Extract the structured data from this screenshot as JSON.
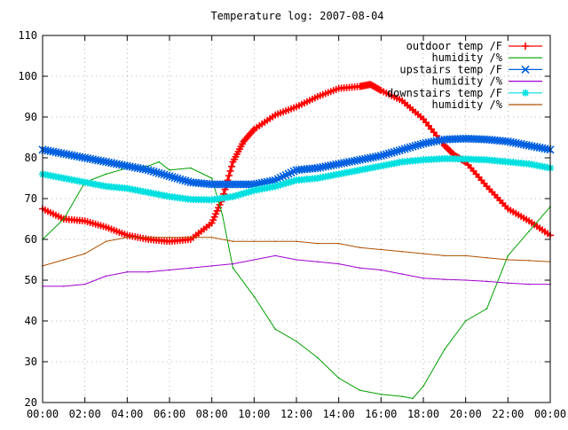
{
  "chart_data": {
    "type": "line",
    "title": "Temperature log: 2007-08-04",
    "xlabel": "",
    "ylabel": "",
    "xlim": [
      0,
      24
    ],
    "ylim": [
      20,
      110
    ],
    "grid": true,
    "legend_position": "top-right",
    "x_tick_labels": [
      "00:00",
      "02:00",
      "04:00",
      "06:00",
      "08:00",
      "10:00",
      "12:00",
      "14:00",
      "16:00",
      "18:00",
      "20:00",
      "22:00",
      "00:00"
    ],
    "y_ticks": [
      20,
      30,
      40,
      50,
      60,
      70,
      80,
      90,
      100,
      110
    ],
    "series": [
      {
        "name": "outdoor temp /F",
        "color": "#ff0000",
        "marker": "plus",
        "x": [
          0,
          1,
          2,
          3,
          4,
          5,
          6,
          7,
          8,
          8.5,
          9,
          9.5,
          10,
          11,
          12,
          13,
          14,
          15,
          15.5,
          16,
          17,
          18,
          19,
          19.5,
          20,
          21,
          22,
          23,
          24
        ],
        "y": [
          67.5,
          65,
          64.5,
          63,
          61,
          60,
          59.5,
          60,
          64,
          70,
          79,
          84,
          87,
          90.5,
          92.5,
          95,
          97,
          97.5,
          98,
          96.5,
          94,
          89.5,
          83,
          80.5,
          79,
          73,
          67.5,
          64.5,
          61
        ]
      },
      {
        "name": "humidity /%",
        "color": "#00a000",
        "marker": "none",
        "x": [
          0,
          1,
          2,
          3,
          4,
          5,
          5.5,
          6,
          7,
          8,
          8.5,
          9,
          10,
          11,
          12,
          13,
          14,
          15,
          16,
          17,
          17.5,
          18,
          19,
          20,
          21,
          22,
          23,
          24
        ],
        "y": [
          60,
          65,
          74,
          76,
          77.5,
          78,
          79,
          77,
          77.5,
          75,
          66,
          53,
          46,
          38,
          35,
          31,
          26,
          23,
          22,
          21.5,
          21,
          24,
          33,
          40,
          43,
          56,
          62,
          68
        ]
      },
      {
        "name": "upstairs temp /F",
        "color": "#0060e0",
        "marker": "x",
        "x": [
          0,
          1,
          2,
          3,
          4,
          5,
          6,
          7,
          8,
          9,
          10,
          11,
          12,
          13,
          14,
          15,
          16,
          17,
          18,
          19,
          20,
          21,
          22,
          23,
          24
        ],
        "y": [
          82,
          81,
          80,
          79,
          78,
          77,
          75.5,
          74,
          73.5,
          73.5,
          73.5,
          74.5,
          77,
          77.5,
          78.5,
          79.5,
          80.5,
          82,
          83.5,
          84.5,
          84.7,
          84.5,
          84,
          83,
          82
        ]
      },
      {
        "name": "humidity /%",
        "color": "#a000d0",
        "marker": "none",
        "x": [
          0,
          1,
          2,
          3,
          4,
          5,
          6,
          7,
          8,
          9,
          10,
          11,
          12,
          13,
          14,
          15,
          16,
          17,
          18,
          19,
          20,
          21,
          22,
          23,
          24
        ],
        "y": [
          48.5,
          48.5,
          49,
          51,
          52,
          52,
          52.5,
          53,
          53.5,
          54,
          55,
          56,
          55,
          54.5,
          54,
          53,
          52.5,
          51.5,
          50.5,
          50.2,
          50,
          49.7,
          49.3,
          49,
          49
        ]
      },
      {
        "name": "downstairs temp /F",
        "color": "#00e0e0",
        "marker": "star",
        "x": [
          0,
          1,
          2,
          3,
          4,
          5,
          6,
          7,
          8,
          9,
          10,
          11,
          12,
          13,
          14,
          15,
          16,
          17,
          18,
          19,
          20,
          21,
          22,
          23,
          24
        ],
        "y": [
          76,
          75,
          74,
          73,
          72.5,
          71.5,
          70.5,
          69.8,
          69.7,
          70.5,
          72,
          73,
          74.5,
          75,
          76,
          77,
          78,
          79,
          79.5,
          79.8,
          79.7,
          79.5,
          79,
          78.5,
          77.5
        ]
      },
      {
        "name": "humidity /%",
        "color": "#b05000",
        "marker": "none",
        "x": [
          0,
          1,
          2,
          3,
          4,
          5,
          6,
          7,
          8,
          9,
          10,
          11,
          12,
          13,
          14,
          15,
          16,
          17,
          18,
          19,
          20,
          21,
          22,
          23,
          24
        ],
        "y": [
          53.5,
          55,
          56.5,
          59.5,
          60.5,
          60.5,
          60.5,
          60.5,
          60.5,
          59.5,
          59.5,
          59.5,
          59.5,
          59,
          59,
          58,
          57.5,
          57,
          56.5,
          56,
          56,
          55.5,
          55,
          54.8,
          54.5
        ]
      }
    ]
  }
}
